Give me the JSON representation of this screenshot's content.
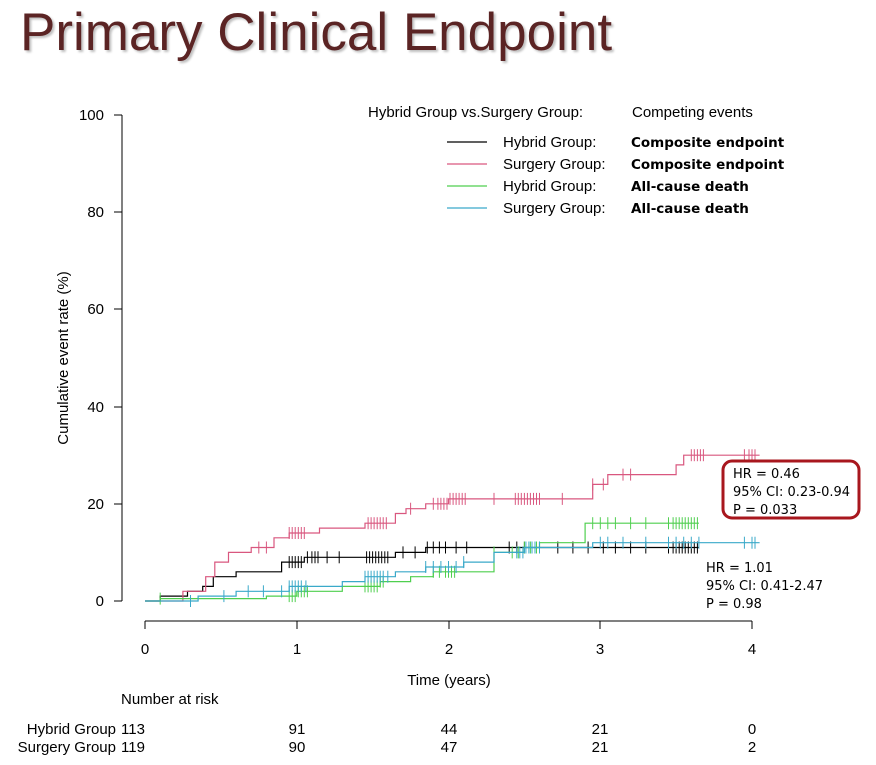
{
  "slide": {
    "title": "Primary Clinical Endpoint"
  },
  "chart_data": {
    "type": "line",
    "subtype": "cumulative incidence (step)",
    "xlabel": "Time (years)",
    "ylabel": "Cumulative event rate (%)",
    "xlim": [
      0,
      4
    ],
    "ylim": [
      0,
      100
    ],
    "x_ticks": [
      "0",
      "1",
      "2",
      "3",
      "4"
    ],
    "y_ticks": [
      "0",
      "20",
      "40",
      "60",
      "80",
      "100"
    ],
    "grid": false,
    "legend": {
      "placement": "top-right",
      "header_left": "Hybrid Group vs.Surgery Group:",
      "header_right": "Competing events",
      "entries": [
        {
          "group": "Hybrid Group:",
          "event": "Composite endpoint",
          "color": "#000000"
        },
        {
          "group": "Surgery Group:",
          "event": "Composite endpoint",
          "color": "#d9577f"
        },
        {
          "group": "Hybrid Group:",
          "event": "All-cause death",
          "color": "#4fcf4f"
        },
        {
          "group": "Surgery Group:",
          "event": "All-cause death",
          "color": "#3aa9c9"
        }
      ]
    },
    "series": [
      {
        "color": "#000000",
        "steps": [
          [
            0,
            0
          ],
          [
            0.1,
            0
          ],
          [
            0.1,
            1
          ],
          [
            0.28,
            1
          ],
          [
            0.28,
            2
          ],
          [
            0.38,
            2
          ],
          [
            0.38,
            3
          ],
          [
            0.45,
            3
          ],
          [
            0.45,
            5
          ],
          [
            0.6,
            5
          ],
          [
            0.6,
            6
          ],
          [
            0.9,
            6
          ],
          [
            0.9,
            8
          ],
          [
            1.05,
            8
          ],
          [
            1.05,
            9
          ],
          [
            1.45,
            9
          ],
          [
            1.45,
            9
          ],
          [
            1.65,
            9
          ],
          [
            1.65,
            10
          ],
          [
            1.85,
            10
          ],
          [
            1.85,
            11
          ],
          [
            3.65,
            11
          ]
        ],
        "censor_x": [
          0.95,
          0.97,
          0.99,
          1.01,
          1.03,
          1.07,
          1.1,
          1.12,
          1.14,
          1.2,
          1.28,
          1.46,
          1.48,
          1.5,
          1.52,
          1.54,
          1.56,
          1.58,
          1.6,
          1.7,
          1.78,
          1.86,
          1.9,
          1.94,
          1.98,
          2.05,
          2.12,
          2.4,
          2.45,
          2.5,
          2.55,
          2.6,
          2.72,
          2.82,
          2.92,
          3.02,
          3.1,
          3.2,
          3.3,
          3.45,
          3.48,
          3.5,
          3.52,
          3.54,
          3.56,
          3.58,
          3.6,
          3.62,
          3.64
        ]
      },
      {
        "color": "#d9577f",
        "steps": [
          [
            0,
            0
          ],
          [
            0.25,
            0
          ],
          [
            0.25,
            2
          ],
          [
            0.4,
            2
          ],
          [
            0.4,
            5
          ],
          [
            0.46,
            5
          ],
          [
            0.46,
            8
          ],
          [
            0.55,
            8
          ],
          [
            0.55,
            10
          ],
          [
            0.7,
            10
          ],
          [
            0.7,
            11
          ],
          [
            0.85,
            11
          ],
          [
            0.85,
            13
          ],
          [
            0.95,
            13
          ],
          [
            0.95,
            14
          ],
          [
            1.15,
            14
          ],
          [
            1.15,
            15
          ],
          [
            1.45,
            15
          ],
          [
            1.45,
            16
          ],
          [
            1.65,
            16
          ],
          [
            1.65,
            18
          ],
          [
            1.72,
            18
          ],
          [
            1.72,
            19
          ],
          [
            1.85,
            19
          ],
          [
            1.85,
            20
          ],
          [
            2.0,
            20
          ],
          [
            2.0,
            21
          ],
          [
            2.95,
            21
          ],
          [
            2.95,
            24
          ],
          [
            3.05,
            24
          ],
          [
            3.05,
            26
          ],
          [
            3.5,
            26
          ],
          [
            3.5,
            28
          ],
          [
            3.55,
            28
          ],
          [
            3.55,
            30
          ],
          [
            4.05,
            30
          ]
        ],
        "censor_x": [
          0.75,
          0.8,
          0.95,
          0.97,
          0.99,
          1.01,
          1.03,
          1.05,
          1.47,
          1.49,
          1.51,
          1.53,
          1.55,
          1.57,
          1.59,
          1.75,
          1.9,
          1.93,
          1.95,
          1.97,
          1.99,
          2.01,
          2.03,
          2.05,
          2.07,
          2.09,
          2.11,
          2.3,
          2.44,
          2.46,
          2.48,
          2.5,
          2.52,
          2.54,
          2.56,
          2.58,
          2.6,
          2.75,
          2.95,
          3.02,
          3.15,
          3.2,
          3.6,
          3.62,
          3.64,
          3.66,
          3.68,
          3.95,
          3.98,
          4.0,
          4.02
        ]
      },
      {
        "color": "#4fcf4f",
        "steps": [
          [
            0,
            0
          ],
          [
            0.1,
            0
          ],
          [
            0.1,
            0.5
          ],
          [
            0.8,
            0.5
          ],
          [
            0.8,
            1
          ],
          [
            1.0,
            1
          ],
          [
            1.0,
            2
          ],
          [
            1.3,
            2
          ],
          [
            1.3,
            3
          ],
          [
            1.55,
            3
          ],
          [
            1.55,
            4
          ],
          [
            1.75,
            4
          ],
          [
            1.75,
            5
          ],
          [
            1.9,
            5
          ],
          [
            1.9,
            6
          ],
          [
            2.3,
            6
          ],
          [
            2.3,
            10
          ],
          [
            2.5,
            10
          ],
          [
            2.5,
            11
          ],
          [
            2.6,
            11
          ],
          [
            2.6,
            12
          ],
          [
            2.9,
            12
          ],
          [
            2.9,
            16
          ],
          [
            3.65,
            16
          ]
        ],
        "censor_x": [
          0.1,
          0.95,
          0.97,
          0.99,
          1.01,
          1.03,
          1.05,
          1.07,
          1.45,
          1.47,
          1.49,
          1.51,
          1.53,
          1.55,
          1.57,
          1.9,
          1.94,
          1.98,
          2.0,
          2.02,
          2.04,
          2.3,
          2.42,
          2.46,
          2.5,
          2.54,
          2.58,
          2.95,
          3.0,
          3.05,
          3.1,
          3.2,
          3.3,
          3.45,
          3.48,
          3.5,
          3.52,
          3.54,
          3.56,
          3.58,
          3.6,
          3.62,
          3.64
        ]
      },
      {
        "color": "#3aa9c9",
        "steps": [
          [
            0,
            0
          ],
          [
            0.05,
            0
          ],
          [
            0.05,
            0
          ],
          [
            0.35,
            0
          ],
          [
            0.35,
            1
          ],
          [
            0.6,
            1
          ],
          [
            0.6,
            2
          ],
          [
            0.95,
            2
          ],
          [
            0.95,
            3
          ],
          [
            1.3,
            3
          ],
          [
            1.3,
            4
          ],
          [
            1.45,
            4
          ],
          [
            1.45,
            5
          ],
          [
            1.65,
            5
          ],
          [
            1.65,
            6
          ],
          [
            1.85,
            6
          ],
          [
            1.85,
            7
          ],
          [
            2.1,
            7
          ],
          [
            2.1,
            8
          ],
          [
            2.3,
            8
          ],
          [
            2.3,
            10
          ],
          [
            2.5,
            10
          ],
          [
            2.5,
            11
          ],
          [
            2.95,
            11
          ],
          [
            2.95,
            12
          ],
          [
            4.05,
            12
          ]
        ],
        "censor_x": [
          0.3,
          0.52,
          0.68,
          0.78,
          0.9,
          0.95,
          0.97,
          0.99,
          1.01,
          1.03,
          1.06,
          1.45,
          1.47,
          1.49,
          1.51,
          1.53,
          1.55,
          1.57,
          1.6,
          1.85,
          1.9,
          1.95,
          2.0,
          2.05,
          2.1,
          2.45,
          2.47,
          2.49,
          2.51,
          2.53,
          2.55,
          2.57,
          2.6,
          3.0,
          3.05,
          3.15,
          3.3,
          3.45,
          3.5,
          3.55,
          3.6,
          3.65,
          3.95,
          4.0,
          4.02
        ]
      }
    ],
    "annotations": {
      "box": [
        "HR = 0.46",
        "95% CI: 0.23-0.94",
        "P = 0.033"
      ],
      "box_color": "#a8171e",
      "plain": [
        "HR = 1.01",
        "95% CI: 0.41-2.47",
        "P = 0.98"
      ]
    },
    "risk_table": {
      "title": "Number at risk",
      "rows": [
        {
          "label": "Hybrid Group",
          "values": [
            "113",
            "91",
            "44",
            "21",
            "0"
          ]
        },
        {
          "label": "Surgery Group",
          "values": [
            "119",
            "90",
            "47",
            "21",
            "2"
          ]
        }
      ]
    }
  }
}
